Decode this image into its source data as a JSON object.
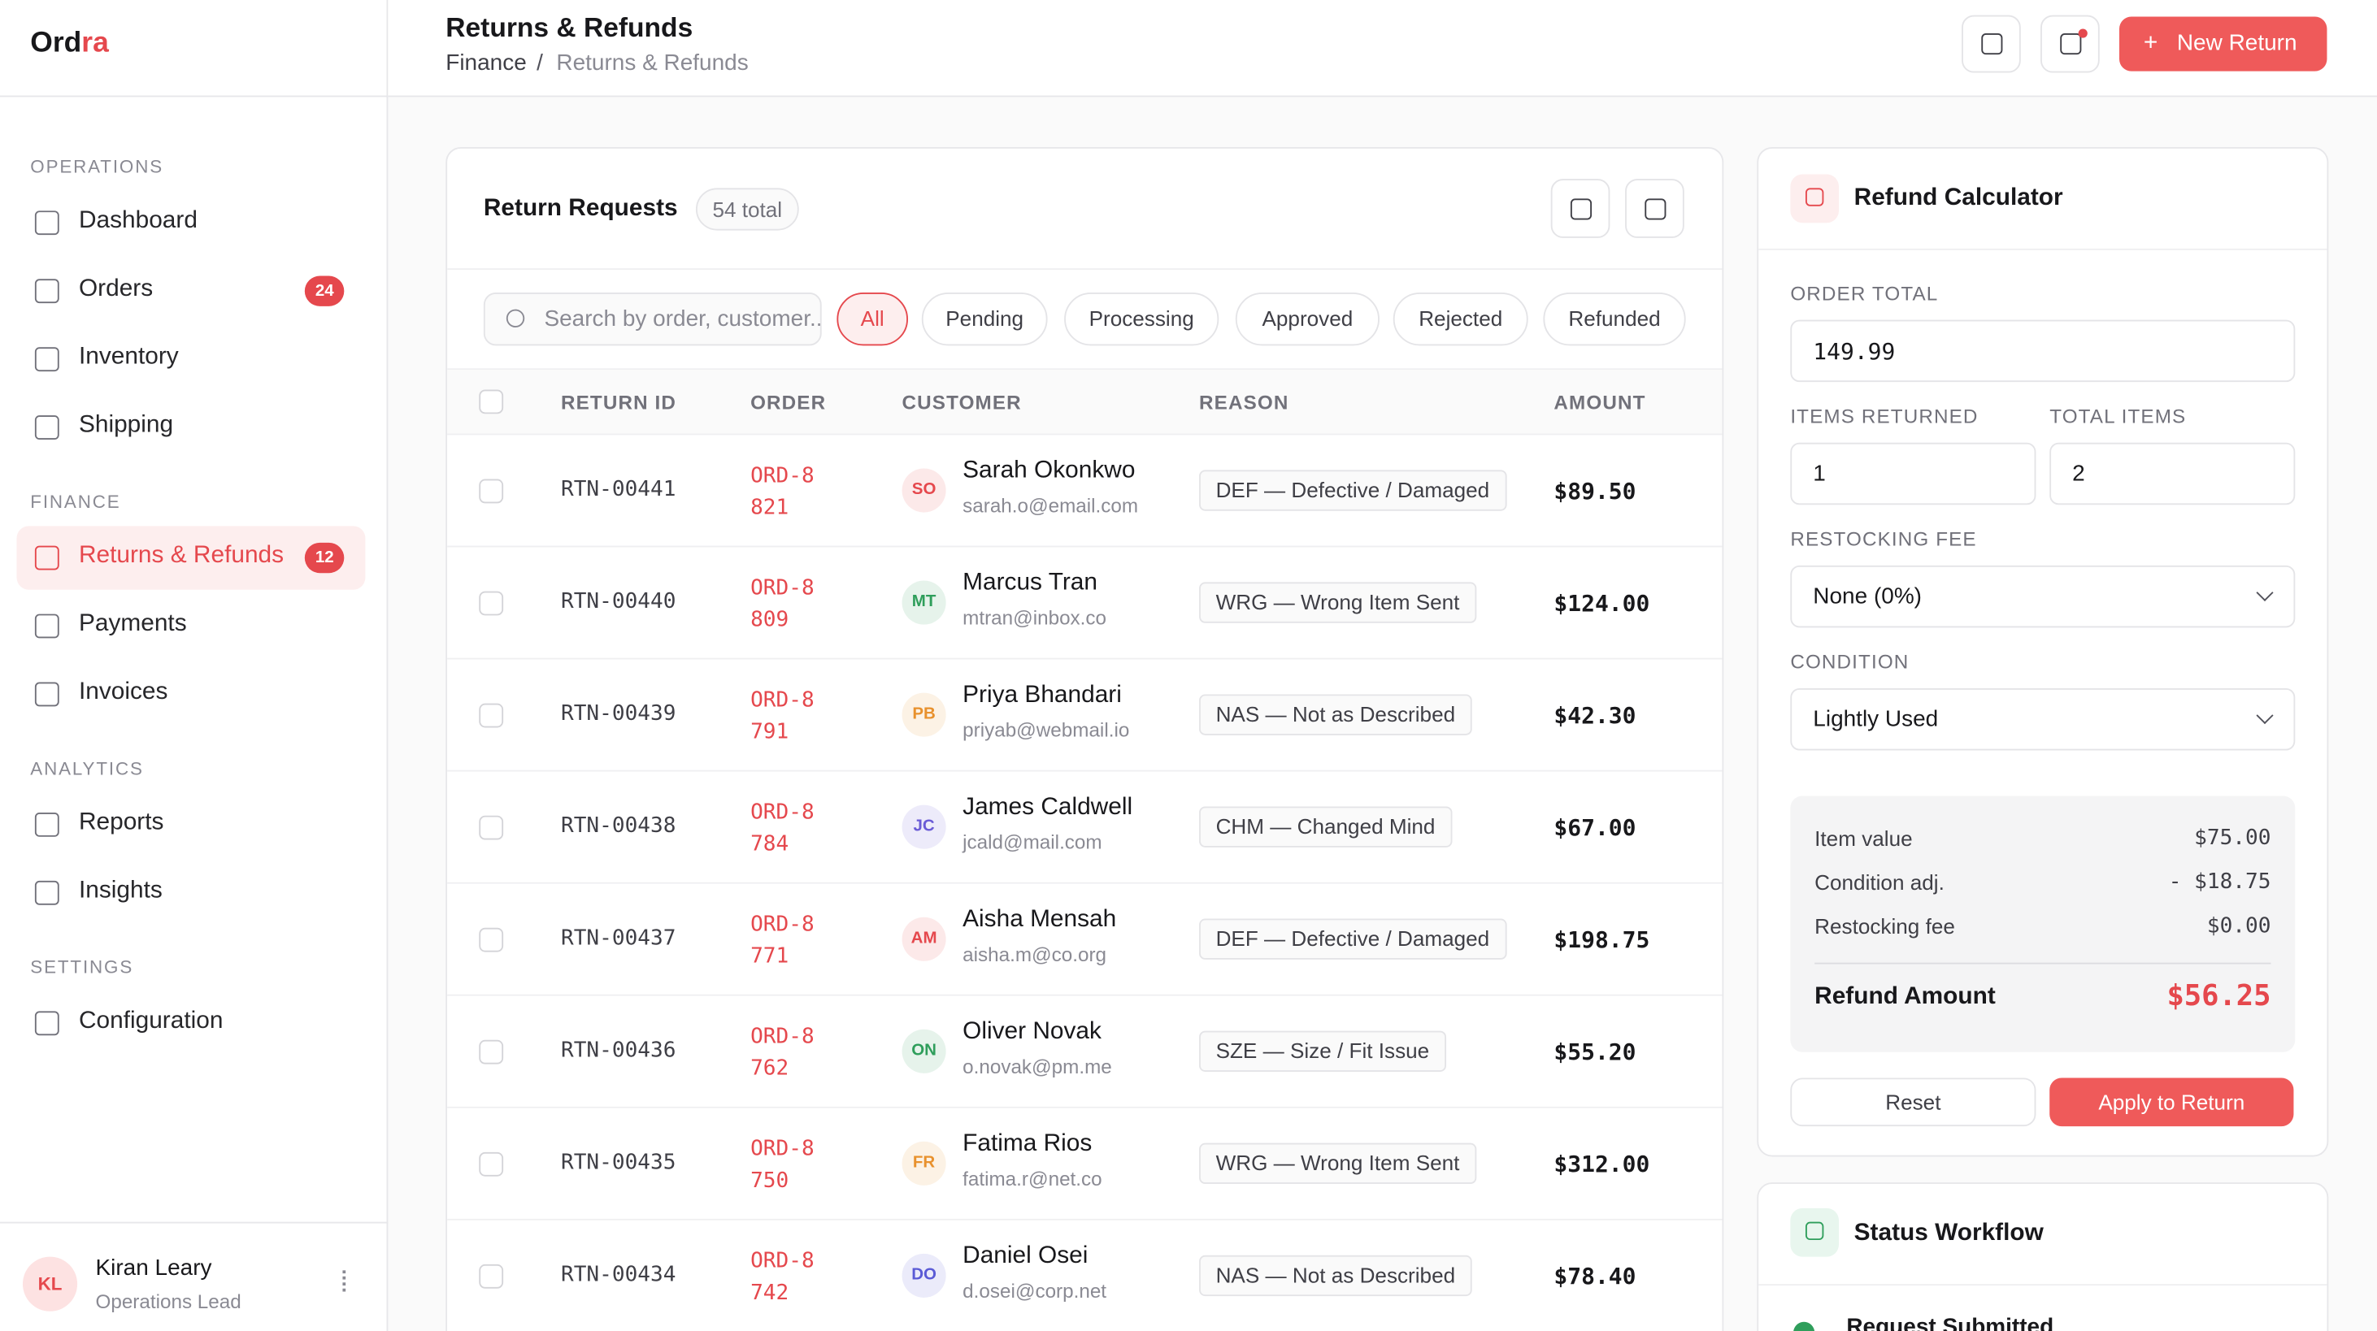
{
  "brand": {
    "name_a": "Ord",
    "name_b": "ra"
  },
  "sidebar": {
    "sections": [
      {
        "label": "OPERATIONS",
        "items": [
          {
            "label": "Dashboard"
          },
          {
            "label": "Orders",
            "badge": "24"
          },
          {
            "label": "Inventory"
          },
          {
            "label": "Shipping"
          }
        ]
      },
      {
        "label": "FINANCE",
        "items": [
          {
            "label": "Returns & Refunds",
            "badge": "12",
            "active": true
          },
          {
            "label": "Payments"
          },
          {
            "label": "Invoices"
          }
        ]
      },
      {
        "label": "ANALYTICS",
        "items": [
          {
            "label": "Reports"
          },
          {
            "label": "Insights"
          }
        ]
      },
      {
        "label": "SETTINGS",
        "items": [
          {
            "label": "Configuration"
          }
        ]
      }
    ]
  },
  "user": {
    "initials": "KL",
    "name": "Kiran Leary",
    "role": "Operations Lead"
  },
  "header": {
    "title": "Returns & Refunds",
    "breadcrumb": [
      "Finance",
      "Returns & Refunds"
    ],
    "separator": "/",
    "new_button": "New Return"
  },
  "requests": {
    "title": "Return Requests",
    "count": "54 total",
    "search_placeholder": "Search by order, customer...",
    "filters": [
      "All",
      "Pending",
      "Processing",
      "Approved",
      "Rejected",
      "Refunded"
    ],
    "active_filter": 0,
    "columns": [
      "RETURN ID",
      "ORDER",
      "CUSTOMER",
      "REASON",
      "AMOUNT"
    ],
    "rows": [
      {
        "id": "RTN-00441",
        "order": "ORD-8821",
        "initials": "SO",
        "name": "Sarah Okonkwo",
        "email": "sarah.o@email.com",
        "reason": "DEF — Defective / Damaged",
        "amount": "$89.50",
        "color": "#e5484d"
      },
      {
        "id": "RTN-00440",
        "order": "ORD-8809",
        "initials": "MT",
        "name": "Marcus Tran",
        "email": "mtran@inbox.co",
        "reason": "WRG — Wrong Item Sent",
        "amount": "$124.00",
        "color": "#2f9e5b"
      },
      {
        "id": "RTN-00439",
        "order": "ORD-8791",
        "initials": "PB",
        "name": "Priya Bhandari",
        "email": "priyab@webmail.io",
        "reason": "NAS — Not as Described",
        "amount": "$42.30",
        "color": "#e8912d"
      },
      {
        "id": "RTN-00438",
        "order": "ORD-8784",
        "initials": "JC",
        "name": "James Caldwell",
        "email": "jcald@mail.com",
        "reason": "CHM — Changed Mind",
        "amount": "$67.00",
        "color": "#6a5bd6"
      },
      {
        "id": "RTN-00437",
        "order": "ORD-8771",
        "initials": "AM",
        "name": "Aisha Mensah",
        "email": "aisha.m@co.org",
        "reason": "DEF — Defective / Damaged",
        "amount": "$198.75",
        "color": "#e5484d"
      },
      {
        "id": "RTN-00436",
        "order": "ORD-8762",
        "initials": "ON",
        "name": "Oliver Novak",
        "email": "o.novak@pm.me",
        "reason": "SZE — Size / Fit Issue",
        "amount": "$55.20",
        "color": "#2f9e5b"
      },
      {
        "id": "RTN-00435",
        "order": "ORD-8750",
        "initials": "FR",
        "name": "Fatima Rios",
        "email": "fatima.r@net.co",
        "reason": "WRG — Wrong Item Sent",
        "amount": "$312.00",
        "color": "#e8912d"
      },
      {
        "id": "RTN-00434",
        "order": "ORD-8742",
        "initials": "DO",
        "name": "Daniel Osei",
        "email": "d.osei@corp.net",
        "reason": "NAS — Not as Described",
        "amount": "$78.40",
        "color": "#5b5bd6"
      }
    ]
  },
  "calculator": {
    "title": "Refund Calculator",
    "order_total_label": "ORDER TOTAL",
    "order_total": "149.99",
    "items_returned_label": "ITEMS RETURNED",
    "items_returned": "1",
    "total_items_label": "TOTAL ITEMS",
    "total_items": "2",
    "restocking_label": "RESTOCKING FEE",
    "restocking": "None (0%)",
    "condition_label": "CONDITION",
    "condition": "Lightly Used",
    "summary": [
      {
        "label": "Item value",
        "value": "$75.00"
      },
      {
        "label": "Condition adj.",
        "value": "- $18.75"
      },
      {
        "label": "Restocking fee",
        "value": "$0.00"
      }
    ],
    "refund_label": "Refund Amount",
    "refund": "$56.25",
    "reset": "Reset",
    "apply": "Apply to Return"
  },
  "workflow": {
    "title": "Status Workflow",
    "steps": [
      "Request Submitted"
    ]
  }
}
